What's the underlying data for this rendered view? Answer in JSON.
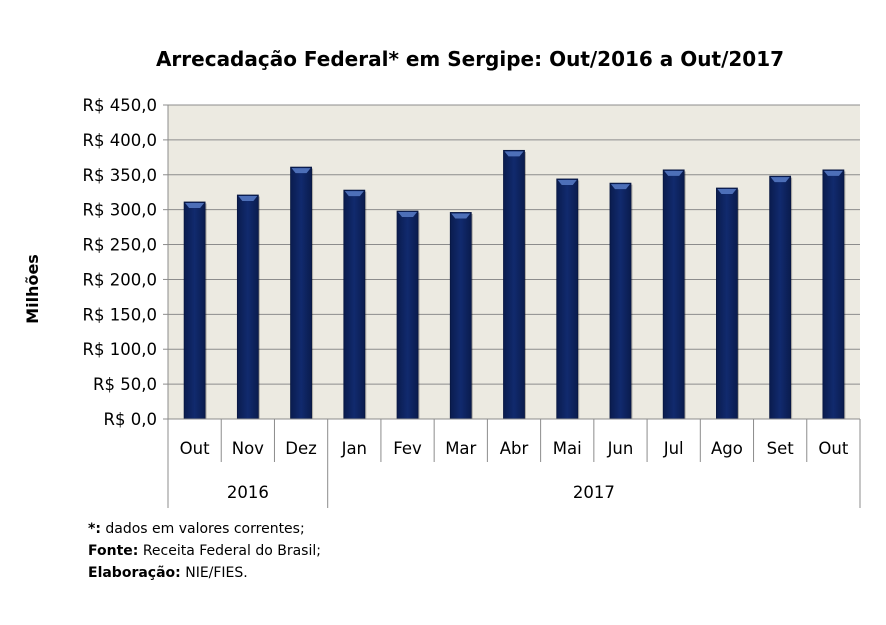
{
  "chart_data": {
    "type": "bar",
    "title": "Arrecadação Federal* em Sergipe: Out/2016 a Out/2017",
    "xlabel": "",
    "ylabel": "Milhões",
    "ylim": [
      0,
      450
    ],
    "ytick_step": 50,
    "ytick_labels": [
      "R$ 0,0",
      "R$ 50,0",
      "R$ 100,0",
      "R$ 150,0",
      "R$ 200,0",
      "R$ 250,0",
      "R$ 300,0",
      "R$ 350,0",
      "R$ 400,0",
      "R$ 450,0"
    ],
    "grid": true,
    "legend": "none",
    "categories": [
      "Out",
      "Nov",
      "Dez",
      "Jan",
      "Fev",
      "Mar",
      "Abr",
      "Mai",
      "Jun",
      "Jul",
      "Ago",
      "Set",
      "Out"
    ],
    "groups": [
      {
        "label": "2016",
        "count": 3
      },
      {
        "label": "2017",
        "count": 10
      }
    ],
    "values": [
      311,
      321,
      361,
      328,
      298,
      296,
      385,
      344,
      338,
      357,
      331,
      348,
      357
    ],
    "colors": {
      "bar": "#0d2461",
      "bar_highlight": "#4d6fb8",
      "plot_bg": "#eceae1",
      "grid": "#8c8c8c"
    }
  },
  "notes": [
    {
      "bold": "*:",
      "text": " dados em valores correntes;"
    },
    {
      "bold": "Fonte:",
      "text": " Receita Federal do Brasil;"
    },
    {
      "bold": "Elaboração:",
      "text": " NIE/FIES."
    }
  ]
}
